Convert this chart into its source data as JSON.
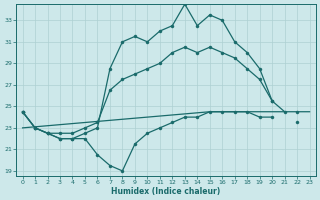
{
  "xlabel": "Humidex (Indice chaleur)",
  "background_color": "#cde8ea",
  "line_color": "#1a6b6b",
  "grid_color": "#aed0d2",
  "hours": [
    0,
    1,
    2,
    3,
    4,
    5,
    6,
    7,
    8,
    9,
    10,
    11,
    12,
    13,
    14,
    15,
    16,
    17,
    18,
    19,
    20,
    21,
    22,
    23
  ],
  "line_max": [
    24.5,
    23.0,
    22.5,
    22.0,
    22.0,
    22.5,
    23.0,
    28.5,
    31.0,
    31.5,
    31.0,
    32.0,
    32.5,
    34.5,
    32.5,
    33.5,
    33.0,
    31.0,
    30.0,
    28.5,
    25.5,
    24.5,
    null,
    null
  ],
  "line_mean": [
    24.5,
    23.0,
    22.5,
    22.5,
    22.5,
    23.0,
    23.5,
    26.5,
    27.5,
    28.0,
    28.5,
    29.0,
    30.0,
    30.5,
    30.0,
    30.5,
    30.0,
    29.5,
    28.5,
    27.5,
    25.5,
    null,
    24.5,
    null
  ],
  "line_min": [
    24.5,
    23.0,
    22.5,
    22.0,
    22.0,
    22.0,
    20.5,
    19.5,
    19.0,
    21.5,
    22.5,
    23.0,
    23.5,
    24.0,
    24.0,
    24.5,
    24.5,
    24.5,
    24.5,
    24.0,
    24.0,
    null,
    23.5,
    null
  ],
  "line_trend": [
    23.0,
    23.1,
    23.2,
    23.3,
    23.4,
    23.5,
    23.6,
    23.7,
    23.8,
    23.9,
    24.0,
    24.1,
    24.2,
    24.3,
    24.4,
    24.5,
    24.5,
    24.5,
    24.5,
    24.5,
    24.5,
    24.5,
    24.5,
    24.5
  ],
  "ylim": [
    18.5,
    34.5
  ],
  "yticks": [
    19,
    21,
    23,
    25,
    27,
    29,
    31,
    33
  ],
  "xlim": [
    -0.5,
    23.5
  ],
  "xticks": [
    0,
    1,
    2,
    3,
    4,
    5,
    6,
    7,
    8,
    9,
    10,
    11,
    12,
    13,
    14,
    15,
    16,
    17,
    18,
    19,
    20,
    21,
    22,
    23
  ]
}
